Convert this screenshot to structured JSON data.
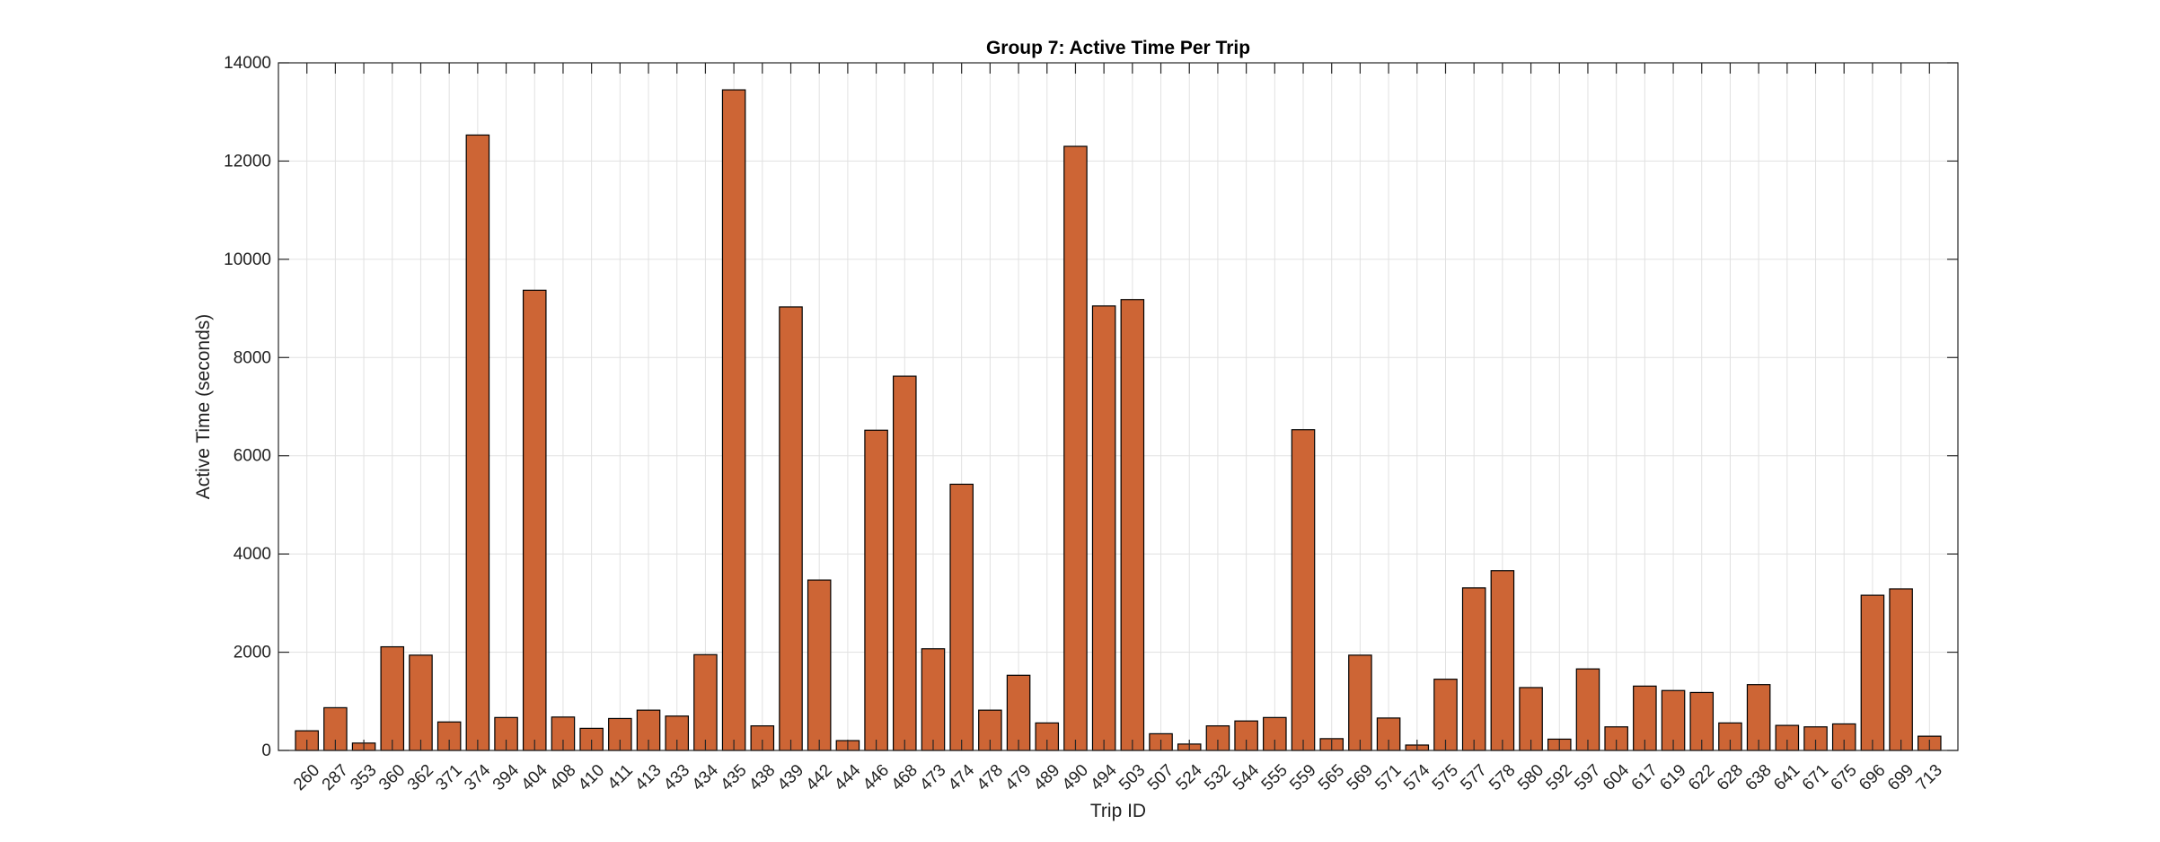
{
  "chart_data": {
    "type": "bar",
    "title": "Group 7: Active Time Per Trip",
    "xlabel": "Trip ID",
    "ylabel": "Active Time (seconds)",
    "ylim": [
      0,
      14000
    ],
    "yticks": [
      0,
      2000,
      4000,
      6000,
      8000,
      10000,
      12000,
      14000
    ],
    "ytick_labels": [
      "0",
      "2000",
      "4000",
      "6000",
      "8000",
      "10000",
      "12000",
      "14000"
    ],
    "grid": true,
    "bar_color": "#cd6535",
    "categories": [
      "260",
      "287",
      "353",
      "360",
      "362",
      "371",
      "374",
      "394",
      "404",
      "408",
      "410",
      "411",
      "413",
      "433",
      "434",
      "435",
      "438",
      "439",
      "442",
      "444",
      "446",
      "468",
      "473",
      "474",
      "478",
      "479",
      "489",
      "490",
      "494",
      "503",
      "507",
      "524",
      "532",
      "544",
      "555",
      "559",
      "565",
      "569",
      "571",
      "574",
      "575",
      "577",
      "578",
      "580",
      "592",
      "597",
      "604",
      "617",
      "619",
      "622",
      "628",
      "638",
      "641",
      "671",
      "675",
      "696",
      "699",
      "713"
    ],
    "values": [
      400,
      870,
      150,
      2110,
      1940,
      580,
      12530,
      670,
      9370,
      680,
      450,
      650,
      820,
      700,
      1950,
      13450,
      500,
      9030,
      3470,
      200,
      6520,
      7620,
      2070,
      5420,
      820,
      1530,
      560,
      12300,
      9050,
      9180,
      340,
      130,
      500,
      600,
      670,
      6530,
      240,
      1940,
      660,
      110,
      1450,
      3310,
      3660,
      1280,
      230,
      1660,
      480,
      1310,
      1220,
      1180,
      560,
      1340,
      510,
      480,
      540,
      3160,
      3290,
      290
    ]
  }
}
